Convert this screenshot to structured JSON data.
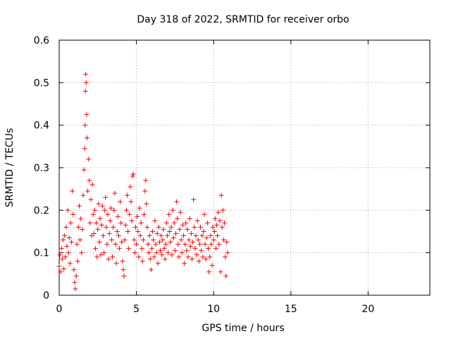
{
  "chart_data": {
    "type": "scatter",
    "title": "Day 318 of 2022, SRMTID for receiver orbo",
    "xlabel": "GPS time / hours",
    "ylabel": "SRMTID / TECUs",
    "xlim": [
      0,
      24
    ],
    "ylim": [
      0,
      0.6
    ],
    "x_ticks": [
      0,
      5,
      10,
      15,
      20
    ],
    "x_tick_labels": [
      "0",
      "5",
      "10",
      "15",
      "20"
    ],
    "y_ticks": [
      0,
      0.1,
      0.2,
      0.3,
      0.4,
      0.5,
      0.6
    ],
    "y_tick_labels": [
      "0",
      "0.1",
      "0.2",
      "0.3",
      "0.4",
      "0.5",
      "0.6"
    ],
    "grid": true,
    "marker": "+",
    "colors": {
      "series": "#ff0000",
      "axis": "#000000",
      "grid": "#a0a0a0",
      "background": "#ffffff"
    },
    "series": [
      {
        "name": "SRMTID",
        "points": [
          [
            0.0,
            0.068
          ],
          [
            0.05,
            0.095
          ],
          [
            0.1,
            0.055
          ],
          [
            0.15,
            0.11
          ],
          [
            0.2,
            0.085
          ],
          [
            0.25,
            0.13
          ],
          [
            0.3,
            0.062
          ],
          [
            0.35,
            0.14
          ],
          [
            0.4,
            0.09
          ],
          [
            0.45,
            0.16
          ],
          [
            0.5,
            0.115
          ],
          [
            0.55,
            0.2
          ],
          [
            0.6,
            0.1
          ],
          [
            0.65,
            0.135
          ],
          [
            0.7,
            0.075
          ],
          [
            0.75,
            0.17
          ],
          [
            0.8,
            0.125
          ],
          [
            0.85,
            0.245
          ],
          [
            0.9,
            0.19
          ],
          [
            0.95,
            0.06
          ],
          [
            1.0,
            0.03
          ],
          [
            1.05,
            0.015
          ],
          [
            1.1,
            0.045
          ],
          [
            1.15,
            0.12
          ],
          [
            1.2,
            0.08
          ],
          [
            1.25,
            0.16
          ],
          [
            1.3,
            0.21
          ],
          [
            1.35,
            0.13
          ],
          [
            1.4,
            0.18
          ],
          [
            1.45,
            0.1
          ],
          [
            1.5,
            0.155
          ],
          [
            1.55,
            0.235
          ],
          [
            1.6,
            0.295
          ],
          [
            1.65,
            0.345
          ],
          [
            1.68,
            0.4
          ],
          [
            1.7,
            0.48
          ],
          [
            1.72,
            0.52
          ],
          [
            1.75,
            0.5
          ],
          [
            1.78,
            0.425
          ],
          [
            1.8,
            0.37
          ],
          [
            1.85,
            0.245
          ],
          [
            1.9,
            0.32
          ],
          [
            1.95,
            0.27
          ],
          [
            2.0,
            0.17
          ],
          [
            2.05,
            0.225
          ],
          [
            2.1,
            0.14
          ],
          [
            2.15,
            0.26
          ],
          [
            2.2,
            0.19
          ],
          [
            2.25,
            0.145
          ],
          [
            2.3,
            0.2
          ],
          [
            2.35,
            0.11
          ],
          [
            2.4,
            0.17
          ],
          [
            2.45,
            0.09
          ],
          [
            2.5,
            0.155
          ],
          [
            2.55,
            0.215
          ],
          [
            2.6,
            0.125
          ],
          [
            2.65,
            0.18
          ],
          [
            2.7,
            0.095
          ],
          [
            2.75,
            0.165
          ],
          [
            2.8,
            0.21
          ],
          [
            2.85,
            0.14
          ],
          [
            2.9,
            0.1
          ],
          [
            2.95,
            0.2
          ],
          [
            3.0,
            0.23
          ],
          [
            3.05,
            0.16
          ],
          [
            3.1,
            0.12
          ],
          [
            3.15,
            0.19
          ],
          [
            3.2,
            0.085
          ],
          [
            3.25,
            0.145
          ],
          [
            3.3,
            0.175
          ],
          [
            3.35,
            0.205
          ],
          [
            3.4,
            0.13
          ],
          [
            3.45,
            0.09
          ],
          [
            3.5,
            0.16
          ],
          [
            3.55,
            0.2
          ],
          [
            3.6,
            0.24
          ],
          [
            3.65,
            0.12
          ],
          [
            3.7,
            0.075
          ],
          [
            3.75,
            0.15
          ],
          [
            3.8,
            0.185
          ],
          [
            3.85,
            0.14
          ],
          [
            3.9,
            0.11
          ],
          [
            3.95,
            0.22
          ],
          [
            4.0,
            0.17
          ],
          [
            4.05,
            0.125
          ],
          [
            4.1,
            0.08
          ],
          [
            4.15,
            0.06
          ],
          [
            4.2,
            0.045
          ],
          [
            4.25,
            0.13
          ],
          [
            4.3,
            0.165
          ],
          [
            4.35,
            0.2
          ],
          [
            4.4,
            0.235
          ],
          [
            4.45,
            0.15
          ],
          [
            4.5,
            0.11
          ],
          [
            4.55,
            0.19
          ],
          [
            4.6,
            0.255
          ],
          [
            4.65,
            0.22
          ],
          [
            4.7,
            0.175
          ],
          [
            4.75,
            0.28
          ],
          [
            4.8,
            0.285
          ],
          [
            4.85,
            0.13
          ],
          [
            4.9,
            0.1
          ],
          [
            4.95,
            0.16
          ],
          [
            5.0,
            0.12
          ],
          [
            5.05,
            0.185
          ],
          [
            5.1,
            0.15
          ],
          [
            5.15,
            0.09
          ],
          [
            5.2,
            0.205
          ],
          [
            5.25,
            0.14
          ],
          [
            5.3,
            0.17
          ],
          [
            5.35,
            0.11
          ],
          [
            5.4,
            0.08
          ],
          [
            5.45,
            0.13
          ],
          [
            5.5,
            0.19
          ],
          [
            5.55,
            0.245
          ],
          [
            5.6,
            0.27
          ],
          [
            5.65,
            0.215
          ],
          [
            5.7,
            0.16
          ],
          [
            5.75,
            0.12
          ],
          [
            5.8,
            0.1
          ],
          [
            5.85,
            0.14
          ],
          [
            5.9,
            0.085
          ],
          [
            5.95,
            0.06
          ],
          [
            6.0,
            0.11
          ],
          [
            6.05,
            0.15
          ],
          [
            6.1,
            0.13
          ],
          [
            6.15,
            0.09
          ],
          [
            6.2,
            0.175
          ],
          [
            6.25,
            0.12
          ],
          [
            6.3,
            0.1
          ],
          [
            6.35,
            0.145
          ],
          [
            6.4,
            0.075
          ],
          [
            6.45,
            0.16
          ],
          [
            6.5,
            0.125
          ],
          [
            6.55,
            0.105
          ],
          [
            6.6,
            0.14
          ],
          [
            6.65,
            0.095
          ],
          [
            6.7,
            0.13
          ],
          [
            6.75,
            0.155
          ],
          [
            6.8,
            0.11
          ],
          [
            6.85,
            0.085
          ],
          [
            6.9,
            0.12
          ],
          [
            6.95,
            0.17
          ],
          [
            7.0,
            0.14
          ],
          [
            7.05,
            0.1
          ],
          [
            7.1,
            0.19
          ],
          [
            7.15,
            0.15
          ],
          [
            7.2,
            0.125
          ],
          [
            7.25,
            0.16
          ],
          [
            7.3,
            0.095
          ],
          [
            7.35,
            0.2
          ],
          [
            7.4,
            0.135
          ],
          [
            7.45,
            0.17
          ],
          [
            7.5,
            0.105
          ],
          [
            7.55,
            0.145
          ],
          [
            7.6,
            0.22
          ],
          [
            7.65,
            0.18
          ],
          [
            7.7,
            0.12
          ],
          [
            7.75,
            0.09
          ],
          [
            7.8,
            0.155
          ],
          [
            7.85,
            0.195
          ],
          [
            7.9,
            0.13
          ],
          [
            7.95,
            0.1
          ],
          [
            8.0,
            0.165
          ],
          [
            8.05,
            0.14
          ],
          [
            8.1,
            0.075
          ],
          [
            8.15,
            0.12
          ],
          [
            8.2,
            0.17
          ],
          [
            8.25,
            0.105
          ],
          [
            8.3,
            0.155
          ],
          [
            8.35,
            0.09
          ],
          [
            8.4,
            0.13
          ],
          [
            8.45,
            0.18
          ],
          [
            8.5,
            0.115
          ],
          [
            8.55,
            0.145
          ],
          [
            8.6,
            0.085
          ],
          [
            8.65,
            0.125
          ],
          [
            8.7,
            0.225
          ],
          [
            8.75,
            0.16
          ],
          [
            8.8,
            0.11
          ],
          [
            8.85,
            0.14
          ],
          [
            8.9,
            0.095
          ],
          [
            8.95,
            0.175
          ],
          [
            9.0,
            0.13
          ],
          [
            9.05,
            0.08
          ],
          [
            9.1,
            0.12
          ],
          [
            9.15,
            0.16
          ],
          [
            9.2,
            0.105
          ],
          [
            9.25,
            0.14
          ],
          [
            9.3,
            0.09
          ],
          [
            9.35,
            0.15
          ],
          [
            9.4,
            0.19
          ],
          [
            9.45,
            0.12
          ],
          [
            9.5,
            0.085
          ],
          [
            9.55,
            0.135
          ],
          [
            9.6,
            0.17
          ],
          [
            9.65,
            0.11
          ],
          [
            9.7,
            0.055
          ],
          [
            9.75,
            0.09
          ],
          [
            9.8,
            0.14
          ],
          [
            9.85,
            0.12
          ],
          [
            9.9,
            0.07
          ],
          [
            9.95,
            0.16
          ],
          [
            10.0,
            0.13
          ],
          [
            10.05,
            0.15
          ],
          [
            10.1,
            0.18
          ],
          [
            10.15,
            0.11
          ],
          [
            10.2,
            0.165
          ],
          [
            10.25,
            0.14
          ],
          [
            10.3,
            0.195
          ],
          [
            10.35,
            0.12
          ],
          [
            10.4,
            0.175
          ],
          [
            10.45,
            0.055
          ],
          [
            10.5,
            0.235
          ],
          [
            10.55,
            0.16
          ],
          [
            10.6,
            0.2
          ],
          [
            10.65,
            0.13
          ],
          [
            10.7,
            0.17
          ],
          [
            10.75,
            0.09
          ],
          [
            10.8,
            0.045
          ],
          [
            10.85,
            0.125
          ],
          [
            10.9,
            0.1
          ]
        ]
      }
    ]
  }
}
